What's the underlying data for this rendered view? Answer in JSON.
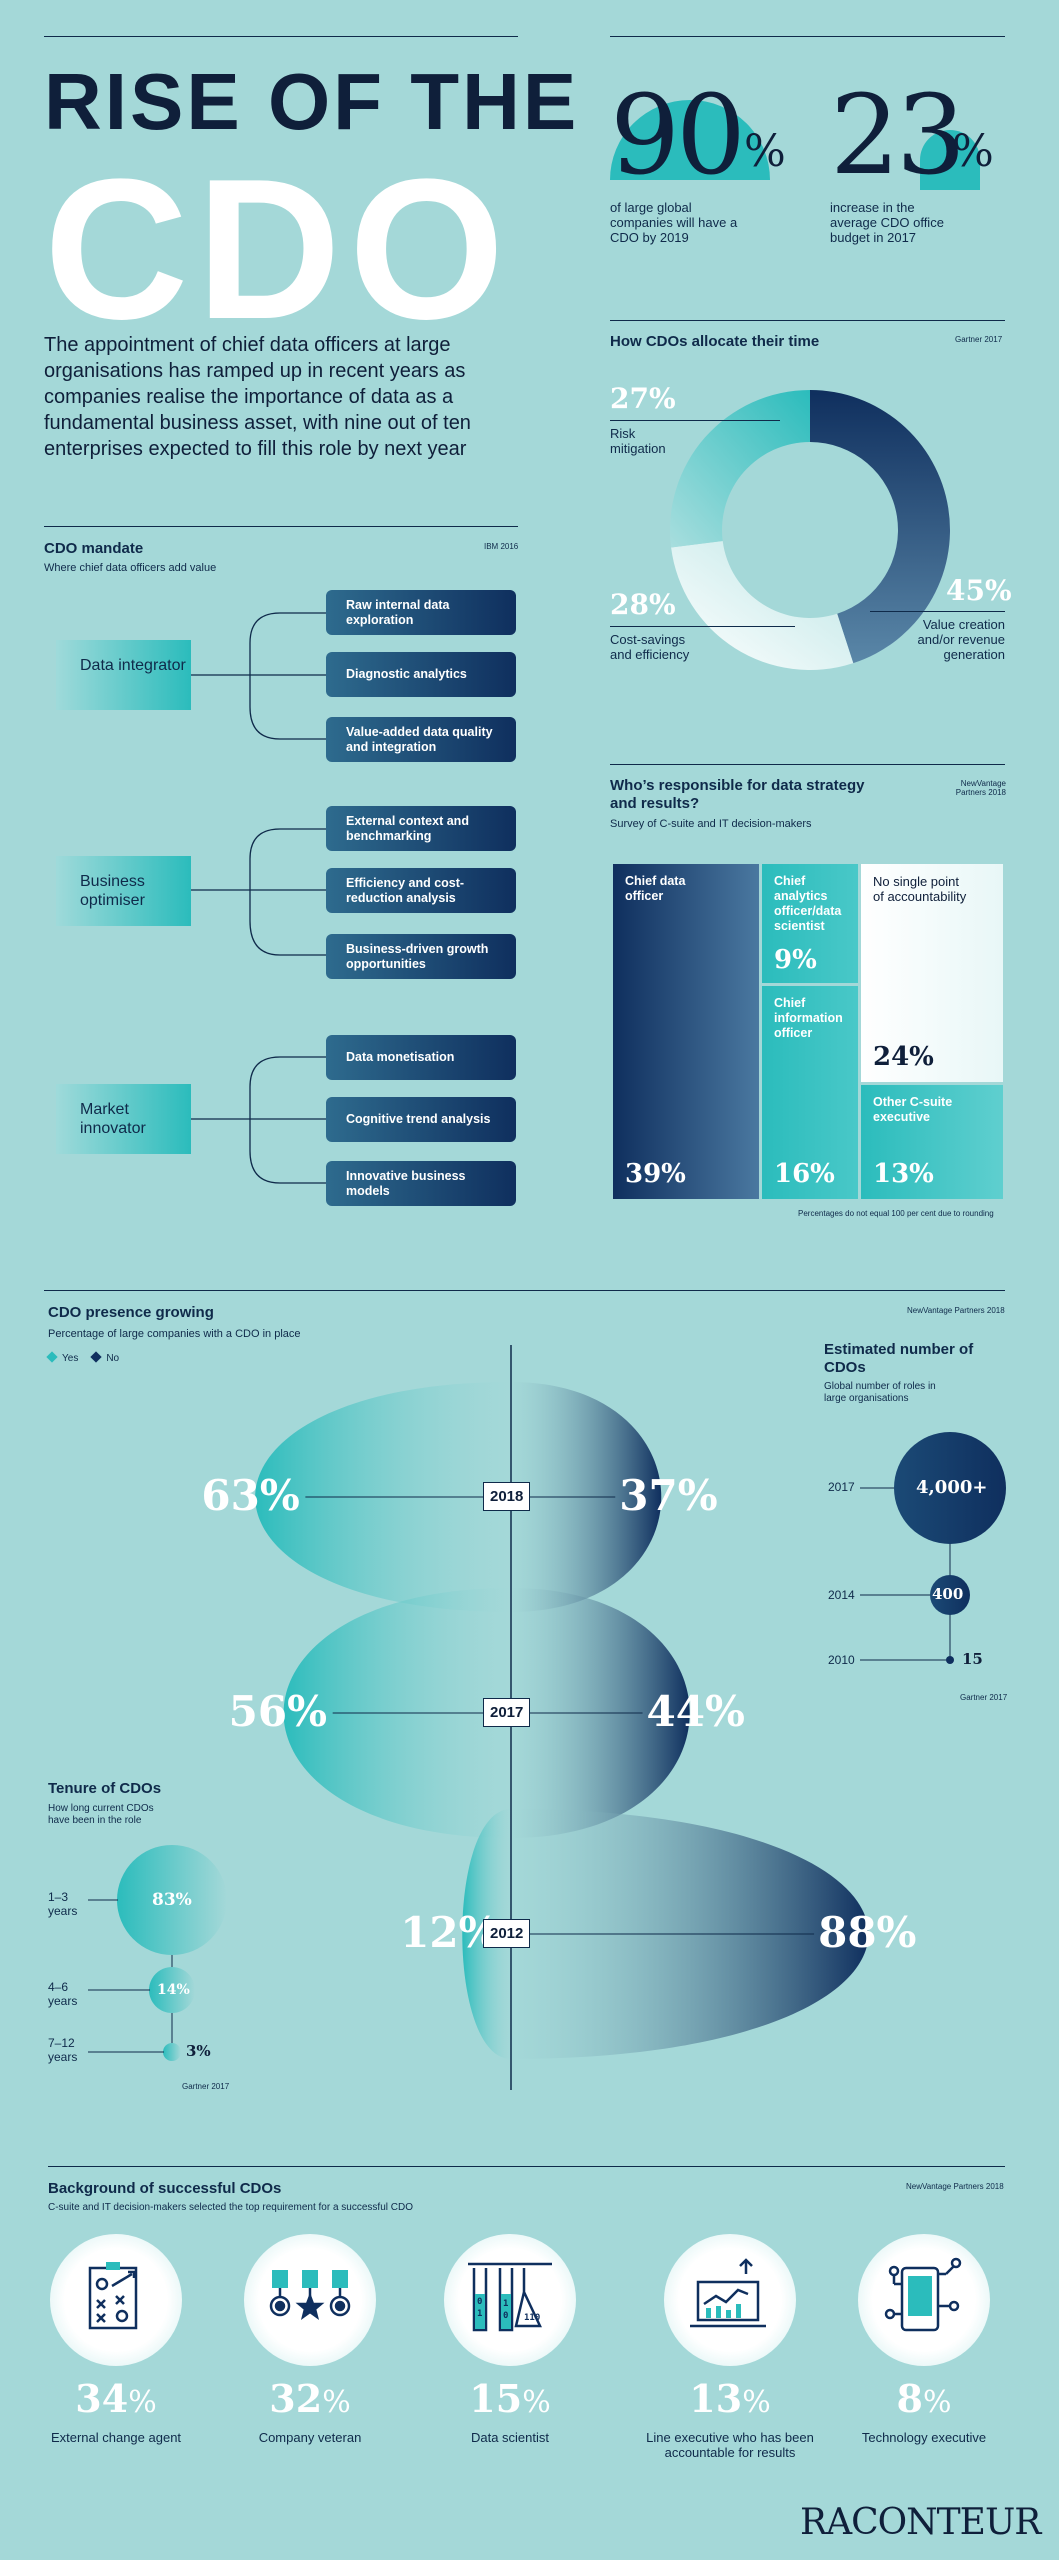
{
  "header": {
    "title_line1": "RISE OF THE",
    "title_line2": "CDO",
    "intro": "The appointment of chief data officers at large organisations has ramped up in recent years as companies realise the importance of data as a fundamental business asset, with nine out of ten enterprises expected to fill this role by next year"
  },
  "stats": [
    {
      "value": "90",
      "unit": "%",
      "desc": "of large global companies will have a CDO by 2019"
    },
    {
      "value": "23",
      "unit": "%",
      "desc": "increase in the average CDO office budget in 2017"
    }
  ],
  "allocation": {
    "title": "How CDOs allocate their time",
    "source": "Gartner 2017",
    "slices": [
      {
        "label": "Value creation and/or revenue generation",
        "value": 45,
        "display": "45%",
        "color": "#0f2f5e"
      },
      {
        "label": "Cost-savings and efficiency",
        "value": 28,
        "display": "28%",
        "color": "#ffffff"
      },
      {
        "label": "Risk mitigation",
        "value": 27,
        "display": "27%",
        "color": "#2bbcbc"
      }
    ]
  },
  "mandate": {
    "title": "CDO mandate",
    "subtitle": "Where chief data officers add value",
    "source": "IBM 2016",
    "groups": [
      {
        "name": "Data integrator",
        "items": [
          "Raw internal data exploration",
          "Diagnostic analytics",
          "Value-added data quality and integration"
        ]
      },
      {
        "name": "Business optimiser",
        "items": [
          "External context and benchmarking",
          "Efficiency and cost-reduction analysis",
          "Business-driven growth opportunities"
        ]
      },
      {
        "name": "Market innovator",
        "items": [
          "Data monetisation",
          "Cognitive trend analysis",
          "Innovative business models"
        ]
      }
    ]
  },
  "responsibility": {
    "title": "Who’s responsible for data strategy and results?",
    "subtitle": "Survey of C-suite and IT decision-makers",
    "source": "NewVantage Partners 2018",
    "footnote": "Percentages do not equal 100 per cent due to rounding",
    "cells": [
      {
        "label": "Chief data officer",
        "value": "39%"
      },
      {
        "label": "Chief analytics officer/data scientist",
        "value": "9%"
      },
      {
        "label": "Chief information officer",
        "value": "16%"
      },
      {
        "label": "No single point of accountability",
        "value": "24%"
      },
      {
        "label": "Other C-suite executive",
        "value": "13%"
      }
    ]
  },
  "presence": {
    "title": "CDO presence growing",
    "subtitle": "Percentage of large companies with a CDO in place",
    "source": "NewVantage Partners 2018",
    "legend": [
      "Yes",
      "No"
    ],
    "colors": {
      "yes": "#2bbcbc",
      "no": "#0f2f5e"
    },
    "years": [
      {
        "year": "2018",
        "yes": 63,
        "no": 37,
        "yes_label": "63%",
        "no_label": "37%"
      },
      {
        "year": "2017",
        "yes": 56,
        "no": 44,
        "yes_label": "56%",
        "no_label": "44%"
      },
      {
        "year": "2012",
        "yes": 12,
        "no": 88,
        "yes_label": "12%",
        "no_label": "88%"
      }
    ]
  },
  "estimated": {
    "title": "Estimated number of CDOs",
    "subtitle": "Global number of roles in large organisations",
    "source": "Gartner 2017",
    "rows": [
      {
        "year": "2017",
        "value": "4,000+"
      },
      {
        "year": "2014",
        "value": "400"
      },
      {
        "year": "2010",
        "value": "15"
      }
    ]
  },
  "tenure": {
    "title": "Tenure of CDOs",
    "subtitle": "How long current CDOs have been in the role",
    "source": "Gartner 2017",
    "rows": [
      {
        "label": "1–3 years",
        "value": "83%"
      },
      {
        "label": "4–6 years",
        "value": "14%"
      },
      {
        "label": "7–12 years",
        "value": "3%"
      }
    ]
  },
  "background": {
    "title": "Background of successful CDOs",
    "subtitle": "C-suite and IT decision-makers selected the top requirement for a successful CDO",
    "source": "NewVantage Partners 2018",
    "items": [
      {
        "value": "34",
        "label": "External change agent",
        "icon": "strategy-board-icon"
      },
      {
        "value": "32",
        "label": "Company veteran",
        "icon": "medals-icon"
      },
      {
        "value": "15",
        "label": "Data scientist",
        "icon": "test-tubes-binary-icon"
      },
      {
        "value": "13",
        "label": "Line executive who has been accountable for results",
        "icon": "laptop-chart-icon"
      },
      {
        "value": "8",
        "label": "Technology executive",
        "icon": "smartphone-network-icon"
      }
    ],
    "unit": "%"
  },
  "brand": "RACONTEUR"
}
